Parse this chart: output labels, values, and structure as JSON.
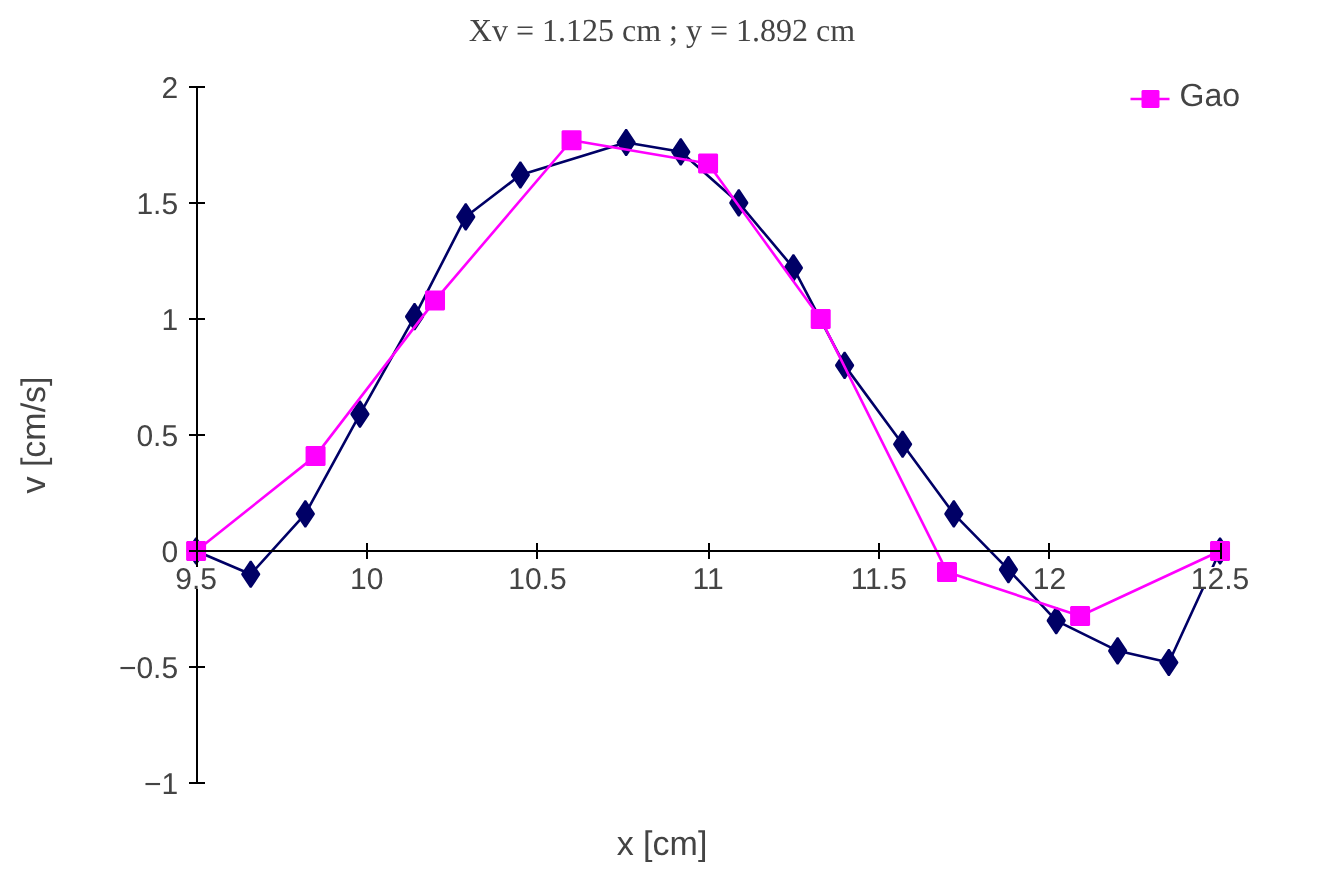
{
  "chart_data": {
    "type": "line",
    "title": "Xv = 1.125 cm ; y = 1.892 cm",
    "xlabel": "x [cm]",
    "ylabel": "v [cm/s]",
    "xlim": [
      9.5,
      12.5
    ],
    "ylim": [
      -1,
      2
    ],
    "xticks": [
      9.5,
      10,
      10.5,
      11,
      11.5,
      12,
      12.5
    ],
    "yticks": [
      -1,
      -0.5,
      0,
      0.5,
      1,
      1.5,
      2
    ],
    "grid": false,
    "legend": "top right",
    "line_style": "solid",
    "series": [
      {
        "color": "#000066",
        "marker": "diamond",
        "x": [
          9.5,
          9.66,
          9.82,
          9.98,
          10.14,
          10.29,
          10.45,
          10.76,
          10.92,
          11.09,
          11.25,
          11.4,
          11.57,
          11.72,
          11.88,
          12.02,
          12.2,
          12.35,
          12.5
        ],
        "values": [
          0,
          -0.1,
          0.16,
          0.59,
          1.01,
          1.44,
          1.62,
          1.76,
          1.72,
          1.5,
          1.22,
          0.8,
          0.46,
          0.16,
          -0.08,
          -0.3,
          -0.43,
          -0.48,
          0
        ]
      },
      {
        "name": "Gao",
        "color": "#ff00ff",
        "marker": "square",
        "x": [
          9.5,
          9.85,
          10.2,
          10.6,
          11.0,
          11.33,
          11.7,
          12.09,
          12.5
        ],
        "values": [
          0,
          0.41,
          1.08,
          1.77,
          1.67,
          1.0,
          -0.09,
          -0.28,
          0
        ]
      }
    ]
  }
}
